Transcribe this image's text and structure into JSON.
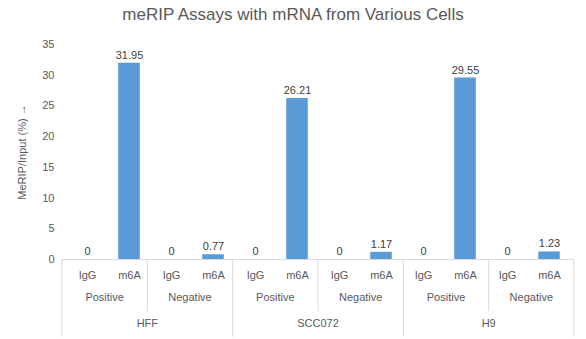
{
  "chart_data": {
    "type": "bar",
    "title": "meRIP Assays with mRNA from Various Cells",
    "y_label": "MeRIP/Input (%)",
    "categories": [
      "IgG",
      "m6A",
      "IgG",
      "m6A",
      "IgG",
      "m6A",
      "IgG",
      "m6A",
      "IgG",
      "m6A",
      "IgG",
      "m6A"
    ],
    "subgroups": [
      "Positive",
      "Positive",
      "Negative",
      "Negative",
      "Positive",
      "Positive",
      "Negative",
      "Negative",
      "Positive",
      "Positive",
      "Negative",
      "Negative"
    ],
    "groups": [
      "HFF",
      "HFF",
      "HFF",
      "HFF",
      "SCC072",
      "SCC072",
      "SCC072",
      "SCC072",
      "H9",
      "H9",
      "H9",
      "H9"
    ],
    "values": [
      0,
      31.95,
      0,
      0.77,
      0,
      26.21,
      0,
      1.17,
      0,
      29.55,
      0,
      1.23
    ],
    "color": "#5b9bd5",
    "ylim": [
      0,
      35
    ],
    "yticks": [
      0,
      5,
      10,
      15,
      20,
      25,
      30,
      35
    ],
    "grid": false,
    "data_labels": true
  }
}
